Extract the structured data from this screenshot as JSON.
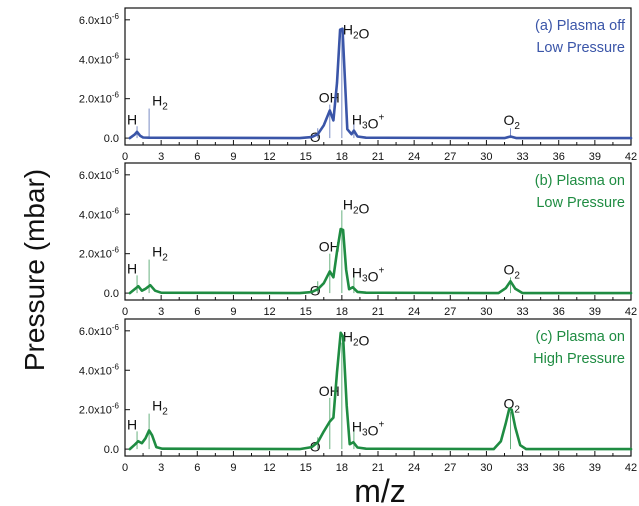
{
  "chart_data": {
    "type": "line",
    "xlabel": "m/z",
    "ylabel": "Pressure (mbar)",
    "xlim": [
      0,
      42
    ],
    "x_ticks": [
      0,
      3,
      6,
      9,
      12,
      15,
      18,
      21,
      24,
      27,
      30,
      33,
      36,
      39,
      42
    ],
    "y_tick_labels": [
      "0.0",
      "2.0x10⁻⁶",
      "4.0x10⁻⁶",
      "6.0x10⁻⁶"
    ],
    "panels": [
      {
        "title": [
          "(a) Plasma off",
          "Low Pressure"
        ],
        "color": "#3a55a8",
        "ylim": [
          -3.5e-07,
          6.6e-06
        ],
        "series": [
          {
            "x": 0.4,
            "y": 0.0
          },
          {
            "x": 0.8,
            "y": 1.8e-07
          },
          {
            "x": 1.0,
            "y": 3.2e-07
          },
          {
            "x": 1.25,
            "y": 1.2e-07
          },
          {
            "x": 1.5,
            "y": 3e-08
          },
          {
            "x": 2.0,
            "y": 2e-08
          },
          {
            "x": 14.5,
            "y": 0.0
          },
          {
            "x": 15.5,
            "y": 5e-08
          },
          {
            "x": 16.0,
            "y": 2e-07
          },
          {
            "x": 16.5,
            "y": 6.5e-07
          },
          {
            "x": 17.0,
            "y": 1.4e-06
          },
          {
            "x": 17.3,
            "y": 9e-07
          },
          {
            "x": 17.6,
            "y": 2.8e-06
          },
          {
            "x": 17.85,
            "y": 5.5e-06
          },
          {
            "x": 18.05,
            "y": 5.55e-06
          },
          {
            "x": 18.25,
            "y": 3e-06
          },
          {
            "x": 18.45,
            "y": 4.5e-07
          },
          {
            "x": 18.8,
            "y": 2e-07
          },
          {
            "x": 19.0,
            "y": 3.8e-07
          },
          {
            "x": 19.3,
            "y": 8e-08
          },
          {
            "x": 20.0,
            "y": 2e-08
          },
          {
            "x": 31.5,
            "y": 0.0
          },
          {
            "x": 32.0,
            "y": 8e-08
          },
          {
            "x": 32.5,
            "y": 0.0
          },
          {
            "x": 42,
            "y": 0.0
          }
        ]
      },
      {
        "title": [
          "(b) Plasma on",
          "Low Pressure"
        ],
        "color": "#1f8c42",
        "ylim": [
          -3.5e-07,
          6.6e-06
        ],
        "series": [
          {
            "x": 0.4,
            "y": 0.0
          },
          {
            "x": 0.8,
            "y": 2e-07
          },
          {
            "x": 1.1,
            "y": 3.5e-07
          },
          {
            "x": 1.4,
            "y": 1.2e-07
          },
          {
            "x": 1.7,
            "y": 2.2e-07
          },
          {
            "x": 2.1,
            "y": 4e-07
          },
          {
            "x": 2.5,
            "y": 1.2e-07
          },
          {
            "x": 3.0,
            "y": 2e-08
          },
          {
            "x": 14.5,
            "y": 0.0
          },
          {
            "x": 15.5,
            "y": 5e-08
          },
          {
            "x": 16.0,
            "y": 2e-07
          },
          {
            "x": 16.5,
            "y": 5e-07
          },
          {
            "x": 17.0,
            "y": 1.1e-06
          },
          {
            "x": 17.3,
            "y": 8e-07
          },
          {
            "x": 17.6,
            "y": 2.1e-06
          },
          {
            "x": 17.9,
            "y": 3.25e-06
          },
          {
            "x": 18.1,
            "y": 3.2e-06
          },
          {
            "x": 18.35,
            "y": 1.2e-06
          },
          {
            "x": 18.6,
            "y": 2e-07
          },
          {
            "x": 18.9,
            "y": 3e-07
          },
          {
            "x": 19.3,
            "y": 6e-08
          },
          {
            "x": 20.0,
            "y": 2e-08
          },
          {
            "x": 31.0,
            "y": 0.0
          },
          {
            "x": 31.6,
            "y": 2.5e-07
          },
          {
            "x": 32.0,
            "y": 6e-07
          },
          {
            "x": 32.4,
            "y": 2.2e-07
          },
          {
            "x": 33.0,
            "y": 0.0
          },
          {
            "x": 42,
            "y": 0.0
          }
        ]
      },
      {
        "title": [
          "(c) Plasma on",
          "High Pressure"
        ],
        "color": "#1f8c42",
        "ylim": [
          -3.5e-07,
          6.6e-06
        ],
        "series": [
          {
            "x": 0.4,
            "y": 0.0
          },
          {
            "x": 0.8,
            "y": 2.2e-07
          },
          {
            "x": 1.1,
            "y": 4e-07
          },
          {
            "x": 1.4,
            "y": 3e-07
          },
          {
            "x": 1.7,
            "y": 5.5e-07
          },
          {
            "x": 2.0,
            "y": 9.5e-07
          },
          {
            "x": 2.25,
            "y": 7e-07
          },
          {
            "x": 2.6,
            "y": 1e-07
          },
          {
            "x": 3.1,
            "y": 2e-08
          },
          {
            "x": 14.5,
            "y": 0.0
          },
          {
            "x": 15.5,
            "y": 1e-07
          },
          {
            "x": 16.0,
            "y": 3.5e-07
          },
          {
            "x": 16.5,
            "y": 9e-07
          },
          {
            "x": 17.0,
            "y": 1.4e-06
          },
          {
            "x": 17.3,
            "y": 1.6e-06
          },
          {
            "x": 17.6,
            "y": 3.9e-06
          },
          {
            "x": 17.9,
            "y": 5.9e-06
          },
          {
            "x": 18.1,
            "y": 5.7e-06
          },
          {
            "x": 18.4,
            "y": 2.2e-06
          },
          {
            "x": 18.65,
            "y": 2.5e-07
          },
          {
            "x": 18.95,
            "y": 3.5e-07
          },
          {
            "x": 19.3,
            "y": 8e-08
          },
          {
            "x": 20.0,
            "y": 2e-08
          },
          {
            "x": 30.6,
            "y": 0.0
          },
          {
            "x": 31.2,
            "y": 4e-07
          },
          {
            "x": 31.6,
            "y": 1.3e-06
          },
          {
            "x": 31.9,
            "y": 2.05e-06
          },
          {
            "x": 32.1,
            "y": 2e-06
          },
          {
            "x": 32.4,
            "y": 1.1e-06
          },
          {
            "x": 32.8,
            "y": 2e-07
          },
          {
            "x": 33.3,
            "y": 0.0
          },
          {
            "x": 42,
            "y": 0.0
          }
        ]
      }
    ],
    "annotations": [
      {
        "x": 1.0,
        "heights": [
          6e-07,
          9e-07,
          9e-07
        ]
      },
      {
        "x": 2.0,
        "heights": [
          1.5e-06,
          1.7e-06,
          1.8e-06
        ]
      },
      {
        "x": 16.0,
        "heights": [
          5e-07,
          6e-07,
          6e-07
        ]
      },
      {
        "x": 17.0,
        "heights": [
          1.7e-06,
          2e-06,
          2.6e-06
        ]
      },
      {
        "x": 18.0,
        "heights": [
          5.2e-06,
          4.2e-06,
          5.4e-06
        ]
      },
      {
        "x": 19.0,
        "heights": [
          9e-07,
          1e-06,
          1.1e-06
        ]
      },
      {
        "x": 32.0,
        "heights": [
          5e-07,
          8e-07,
          1.9e-06
        ]
      }
    ]
  }
}
